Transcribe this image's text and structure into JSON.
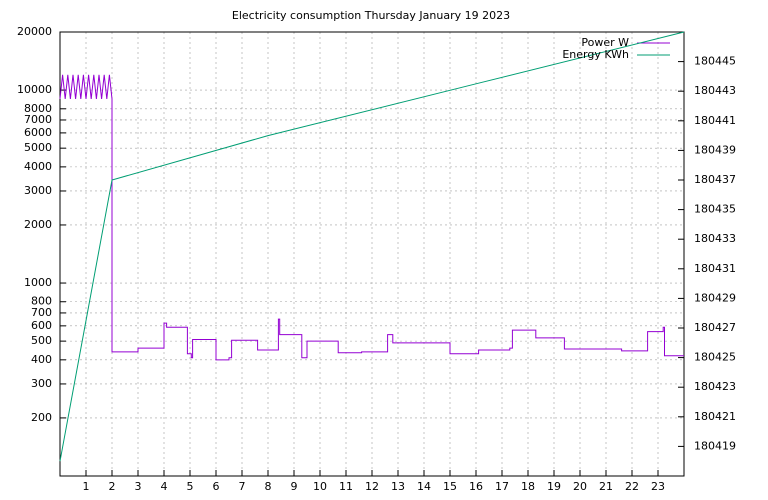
{
  "chart_data": {
    "type": "line",
    "title": "Electricity consumption Thursday January 19 2023",
    "xlim": [
      0,
      24
    ],
    "xticks": [
      1,
      2,
      3,
      4,
      5,
      6,
      7,
      8,
      9,
      10,
      11,
      12,
      13,
      14,
      15,
      16,
      17,
      18,
      19,
      20,
      21,
      22,
      23
    ],
    "ylim": [
      100,
      20000
    ],
    "ylog": true,
    "yticks": [
      200,
      300,
      400,
      500,
      600,
      700,
      800,
      1000,
      2000,
      3000,
      4000,
      5000,
      6000,
      7000,
      8000,
      10000,
      20000
    ],
    "y2lim": [
      180417,
      180447
    ],
    "y2ticks": [
      180419,
      180421,
      180423,
      180425,
      180427,
      180429,
      180431,
      180433,
      180435,
      180437,
      180439,
      180441,
      180443,
      180445
    ],
    "grid": true,
    "legend": "top-right",
    "series": [
      {
        "name": "Power W",
        "color": "#9400d3",
        "x": [
          0,
          0.1,
          0.2,
          0.3,
          0.4,
          0.5,
          0.6,
          0.7,
          0.8,
          0.9,
          1,
          1.1,
          1.2,
          1.3,
          1.4,
          1.5,
          1.6,
          1.7,
          1.8,
          1.9,
          2,
          2,
          3,
          3,
          4,
          4,
          4.1,
          4.1,
          4.9,
          4.9,
          5.05,
          5.05,
          5.1,
          5.1,
          6,
          6,
          6.5,
          6.5,
          6.6,
          6.6,
          7.6,
          7.6,
          8.4,
          8.4,
          8.45,
          8.45,
          9.3,
          9.3,
          9.5,
          9.5,
          10.7,
          10.7,
          11.6,
          11.6,
          12.6,
          12.6,
          12.8,
          12.8,
          15,
          15,
          16.1,
          16.1,
          17.3,
          17.3,
          17.4,
          17.4,
          18.3,
          18.3,
          19.4,
          19.4,
          21.6,
          21.6,
          22.6,
          22.6,
          23.2,
          23.2,
          23.25,
          23.25,
          24
        ],
        "values": [
          9000,
          12000,
          9000,
          12000,
          9000,
          12000,
          9000,
          12000,
          9000,
          12000,
          9000,
          12000,
          9000,
          12000,
          9000,
          12000,
          9000,
          12000,
          9000,
          12000,
          9000,
          440,
          440,
          460,
          460,
          620,
          620,
          590,
          590,
          430,
          430,
          410,
          410,
          510,
          510,
          400,
          400,
          410,
          410,
          505,
          505,
          450,
          450,
          650,
          650,
          540,
          540,
          410,
          410,
          500,
          500,
          435,
          435,
          440,
          440,
          540,
          540,
          490,
          490,
          430,
          430,
          450,
          450,
          460,
          460,
          570,
          570,
          520,
          520,
          455,
          455,
          445,
          445,
          560,
          560,
          590,
          590,
          420,
          420
        ]
      },
      {
        "name": "Energy KWh",
        "color": "#009e73",
        "axis": "y2",
        "x": [
          0,
          2,
          8,
          16,
          24
        ],
        "values": [
          180418,
          180437,
          180440,
          180443.5,
          180447
        ]
      }
    ]
  }
}
